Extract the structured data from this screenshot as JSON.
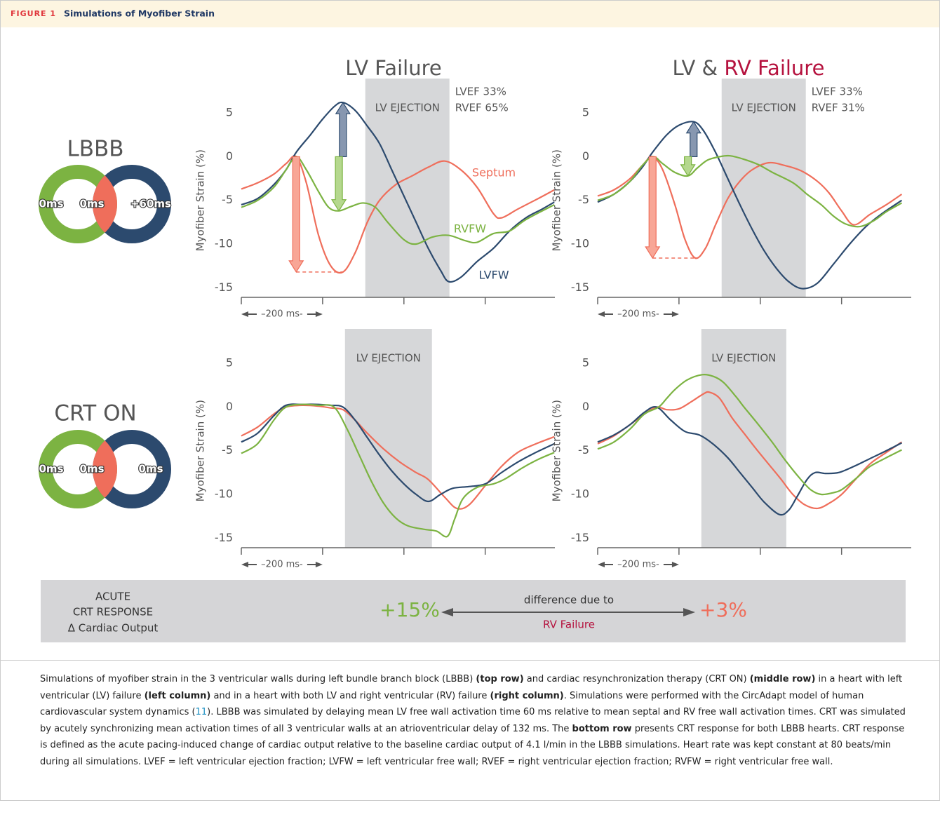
{
  "header": {
    "label": "FIGURE 1",
    "title": "Simulations of Myofiber Strain"
  },
  "columns": [
    {
      "title": "LV Failure"
    },
    {
      "title": "LV &",
      "highlight": "RV Failure"
    }
  ],
  "rows": [
    {
      "label": "LBBB",
      "activation": [
        "0ms",
        "0ms",
        "+60ms"
      ]
    },
    {
      "label": "CRT ON",
      "activation": [
        "0ms",
        "0ms",
        "0ms"
      ]
    }
  ],
  "chart_data": [
    {
      "type": "line",
      "ylabel": "Myofiber Strain (%)",
      "xlim": [
        0,
        780
      ],
      "xticks": [
        0,
        200,
        400,
        600
      ],
      "ylim": [
        -16.1,
        7.5
      ],
      "yticks": [
        5,
        0,
        -5,
        -10,
        -15
      ],
      "scale_label": "–200 ms-",
      "shaded": {
        "x": [
          305,
          512
        ],
        "label": "LV EJECTION"
      },
      "annotations": [
        "LVEF 33%",
        "RVEF 65%"
      ],
      "arrows": true,
      "series": [
        {
          "name": "Septum",
          "color": "#ef6e5b",
          "x": [
            0,
            40,
            80,
            110,
            135,
            160,
            190,
            220,
            250,
            280,
            310,
            340,
            380,
            420,
            460,
            500,
            540,
            580,
            620,
            640,
            680,
            730,
            770
          ],
          "values": [
            -3.7,
            -3.0,
            -2.0,
            -0.8,
            0,
            -3,
            -9,
            -12.5,
            -13.2,
            -11,
            -7.5,
            -5,
            -3.2,
            -2.2,
            -1.2,
            -0.5,
            -1.5,
            -3.5,
            -6.5,
            -7,
            -6,
            -4.8,
            -3.8
          ]
        },
        {
          "name": "LVFW",
          "color": "#2c4a6e",
          "x": [
            0,
            40,
            80,
            110,
            135,
            170,
            200,
            230,
            250,
            280,
            310,
            340,
            370,
            400,
            430,
            460,
            490,
            510,
            540,
            580,
            620,
            660,
            700,
            740,
            770
          ],
          "values": [
            -5.5,
            -4.8,
            -3.2,
            -1.5,
            0.5,
            2.5,
            4.3,
            5.8,
            6.2,
            5.3,
            3.5,
            1.5,
            -1.5,
            -4.5,
            -7.5,
            -10.5,
            -13,
            -14.3,
            -13.8,
            -12,
            -10.5,
            -8.5,
            -7,
            -6,
            -5.2
          ]
        },
        {
          "name": "RVFW",
          "color": "#7cb342",
          "x": [
            0,
            40,
            80,
            110,
            135,
            160,
            190,
            215,
            240,
            270,
            300,
            330,
            360,
            400,
            430,
            470,
            510,
            550,
            580,
            620,
            660,
            700,
            770
          ],
          "values": [
            -5.8,
            -5,
            -3.5,
            -1.5,
            0,
            -1.5,
            -4,
            -5.8,
            -6.2,
            -5.7,
            -5.3,
            -5.8,
            -7.5,
            -9.5,
            -10,
            -9.2,
            -9,
            -9.6,
            -9.8,
            -8.8,
            -8.5,
            -7.2,
            -5.5
          ]
        }
      ]
    },
    {
      "type": "line",
      "ylabel": "Myofiber Strain (%)",
      "xlim": [
        0,
        780
      ],
      "xticks": [
        0,
        200,
        400,
        600
      ],
      "ylim": [
        -16.1,
        7.5
      ],
      "yticks": [
        5,
        0,
        -5,
        -10,
        -15
      ],
      "scale_label": "–200 ms-",
      "shaded": {
        "x": [
          305,
          512
        ],
        "label": "LV EJECTION"
      },
      "annotations": [
        "LVEF 33%",
        "RVEF 31%"
      ],
      "arrows": true,
      "series": [
        {
          "color": "#ef6e5b",
          "x": [
            0,
            40,
            80,
            110,
            135,
            160,
            190,
            215,
            240,
            265,
            290,
            320,
            350,
            380,
            420,
            460,
            500,
            540,
            570,
            600,
            630,
            670,
            710,
            748
          ],
          "values": [
            -4.5,
            -3.8,
            -2.5,
            -1,
            0,
            -1.5,
            -5.5,
            -9.5,
            -11.6,
            -10.5,
            -7.8,
            -4.8,
            -2.8,
            -1.5,
            -0.7,
            -1,
            -1.6,
            -2.8,
            -4.2,
            -6.2,
            -7.8,
            -6.6,
            -5.5,
            -4.3
          ]
        },
        {
          "color": "#2c4a6e",
          "x": [
            0,
            40,
            80,
            110,
            135,
            170,
            200,
            236,
            260,
            290,
            320,
            350,
            380,
            410,
            440,
            470,
            503,
            540,
            580,
            620,
            660,
            700,
            748
          ],
          "values": [
            -5.2,
            -4.3,
            -2.8,
            -1.2,
            0.5,
            2.5,
            3.6,
            4,
            3,
            0.5,
            -2.5,
            -5.5,
            -8.3,
            -10.8,
            -12.8,
            -14.3,
            -15.1,
            -14.5,
            -12.3,
            -10,
            -8,
            -6.5,
            -5
          ]
        },
        {
          "color": "#7cb342",
          "x": [
            0,
            40,
            80,
            110,
            136,
            160,
            190,
            222,
            245,
            270,
            300,
            326,
            360,
            395,
            430,
            481,
            515,
            550,
            580,
            610,
            645,
            680,
            710,
            748
          ],
          "values": [
            -5,
            -4.3,
            -2.8,
            -1,
            0,
            -0.8,
            -1.8,
            -2.2,
            -1.3,
            -0.4,
            0,
            0.1,
            -0.3,
            -0.9,
            -1.8,
            -3,
            -4.3,
            -5.5,
            -6.8,
            -7.7,
            -8,
            -7.3,
            -6.3,
            -5.3
          ]
        }
      ]
    },
    {
      "type": "line",
      "ylabel": "Myofiber Strain (%)",
      "xlim": [
        0,
        780
      ],
      "xticks": [
        0,
        200,
        400,
        600
      ],
      "ylim": [
        -16.1,
        7.5
      ],
      "yticks": [
        5,
        0,
        -5,
        -10,
        -15
      ],
      "scale_label": "–200 ms-",
      "shaded": {
        "x": [
          255,
          469
        ],
        "label": "LV EJECTION"
      },
      "series": [
        {
          "color": "#ef6e5b",
          "x": [
            0,
            40,
            80,
            110,
            150,
            190,
            220,
            250,
            280,
            310,
            350,
            390,
            430,
            460,
            500,
            530,
            560,
            600,
            640,
            680,
            720,
            770
          ],
          "values": [
            -3.3,
            -2.3,
            -0.8,
            0,
            0.2,
            0.1,
            -0.1,
            -0.3,
            -1.5,
            -3,
            -4.8,
            -6.3,
            -7.5,
            -8.3,
            -10.3,
            -11.6,
            -11.2,
            -9,
            -6.8,
            -5.2,
            -4.3,
            -3.4
          ]
        },
        {
          "color": "#2c4a6e",
          "x": [
            0,
            40,
            80,
            110,
            150,
            190,
            220,
            250,
            280,
            310,
            340,
            370,
            400,
            430,
            460,
            490,
            520,
            560,
            600,
            640,
            680,
            720,
            770
          ],
          "values": [
            -4,
            -3,
            -1,
            0.2,
            0.3,
            0.3,
            0.2,
            0,
            -1.5,
            -3.5,
            -5.5,
            -7.3,
            -8.8,
            -10,
            -10.8,
            -10,
            -9.3,
            -9.1,
            -8.8,
            -7.5,
            -6.3,
            -5.3,
            -4.2
          ]
        },
        {
          "color": "#7cb342",
          "x": [
            0,
            40,
            80,
            110,
            150,
            190,
            228,
            260,
            290,
            320,
            350,
            380,
            410,
            450,
            480,
            507,
            525,
            545,
            580,
            620,
            650,
            690,
            730,
            770
          ],
          "values": [
            -5.3,
            -4.2,
            -1.5,
            0,
            0.3,
            0.2,
            0,
            -2.5,
            -5.5,
            -8.5,
            -11,
            -12.7,
            -13.6,
            -14,
            -14.2,
            -14.8,
            -12.8,
            -10.5,
            -9.2,
            -8.8,
            -8.2,
            -7,
            -6,
            -5.2
          ]
        }
      ]
    },
    {
      "type": "line",
      "ylabel": "Myofiber Strain (%)",
      "xlim": [
        0,
        780
      ],
      "xticks": [
        0,
        200,
        400,
        600
      ],
      "ylim": [
        -16.1,
        7.5
      ],
      "yticks": [
        5,
        0,
        -5,
        -10,
        -15
      ],
      "scale_label": "–200 ms-",
      "shaded": {
        "x": [
          255,
          464
        ],
        "label": "LV EJECTION"
      },
      "series": [
        {
          "color": "#ef6e5b",
          "x": [
            0,
            40,
            80,
            115,
            145,
            170,
            200,
            230,
            260,
            275,
            300,
            330,
            360,
            390,
            420,
            450,
            480,
            510,
            541,
            570,
            600,
            630,
            670,
            710,
            748
          ],
          "values": [
            -4.2,
            -3.3,
            -2,
            -0.8,
            0,
            -0.3,
            -0.2,
            0.6,
            1.5,
            1.7,
            1,
            -1.2,
            -3,
            -4.8,
            -6.5,
            -8.2,
            -10,
            -11.2,
            -11.6,
            -11,
            -10,
            -8.5,
            -6.5,
            -5.2,
            -4
          ]
        },
        {
          "color": "#2c4a6e",
          "x": [
            0,
            40,
            80,
            115,
            145,
            180,
            215,
            250,
            283,
            320,
            350,
            380,
            410,
            447,
            470,
            490,
            515,
            535,
            560,
            593,
            630,
            670,
            710,
            748
          ],
          "values": [
            -4,
            -3.2,
            -2,
            -0.6,
            0,
            -1.5,
            -2.8,
            -3.2,
            -4.2,
            -5.8,
            -7.5,
            -9.2,
            -10.9,
            -12.3,
            -11.8,
            -10.3,
            -8.3,
            -7.5,
            -7.6,
            -7.5,
            -6.8,
            -5.9,
            -5,
            -4.1
          ]
        },
        {
          "color": "#7cb342",
          "x": [
            0,
            40,
            80,
            115,
            150,
            170,
            190,
            220,
            257,
            285,
            310,
            340,
            360,
            390,
            429,
            460,
            498,
            525,
            550,
            580,
            602,
            640,
            670,
            710,
            748
          ],
          "values": [
            -4.8,
            -4,
            -2.5,
            -0.8,
            0,
            1,
            2,
            3.1,
            3.7,
            3.5,
            2.8,
            1.2,
            0,
            -1.7,
            -4,
            -6,
            -8.2,
            -9.5,
            -10,
            -9.8,
            -9.4,
            -8,
            -6.8,
            -5.8,
            -4.9
          ]
        }
      ]
    }
  ],
  "response": {
    "heading": [
      "ACUTE",
      "CRT RESPONSE"
    ],
    "measure": "Δ Cardiac Output",
    "left": "+15%",
    "middle": "difference due to",
    "cause": "RV Failure",
    "right": "+3%"
  },
  "caption": [
    {
      "text": "Simulations of myofiber strain in the 3 ventricular walls during left bundle branch block (LBBB) "
    },
    {
      "text": "(top row)",
      "style": "bold"
    },
    {
      "text": " and cardiac resynchronization therapy (CRT ON) "
    },
    {
      "text": "(middle row)",
      "style": "bold"
    },
    {
      "text": " in a heart with left ventricular (LV) failure "
    },
    {
      "text": "(left column)",
      "style": "bold"
    },
    {
      "text": " and in a heart with both LV and right ventricular (RV) failure "
    },
    {
      "text": "(right column)",
      "style": "bold"
    },
    {
      "text": ". Simulations were performed with the CircAdapt model of human cardiovascular system dynamics ("
    },
    {
      "text": "11",
      "style": "link"
    },
    {
      "text": "). LBBB was simulated by delaying mean LV free wall activation time 60 ms relative to mean septal and RV free wall activation times. CRT was simulated by acutely synchronizing mean activation times of all 3 ventricular walls at an atrioventricular delay of 132 ms. The "
    },
    {
      "text": "bottom row",
      "style": "bold"
    },
    {
      "text": " presents CRT response for both LBBB hearts. CRT response is defined as the acute pacing-induced change of cardiac output relative to the baseline cardiac output of 4.1 l/min in the LBBB simulations. Heart rate was kept constant at 80 beats/min during all simulations. LVEF = left ventricular ejection fraction; LVFW = left ventricular free wall; RVEF = right ventricular ejection fraction; RVFW = right ventricular free wall."
    }
  ]
}
